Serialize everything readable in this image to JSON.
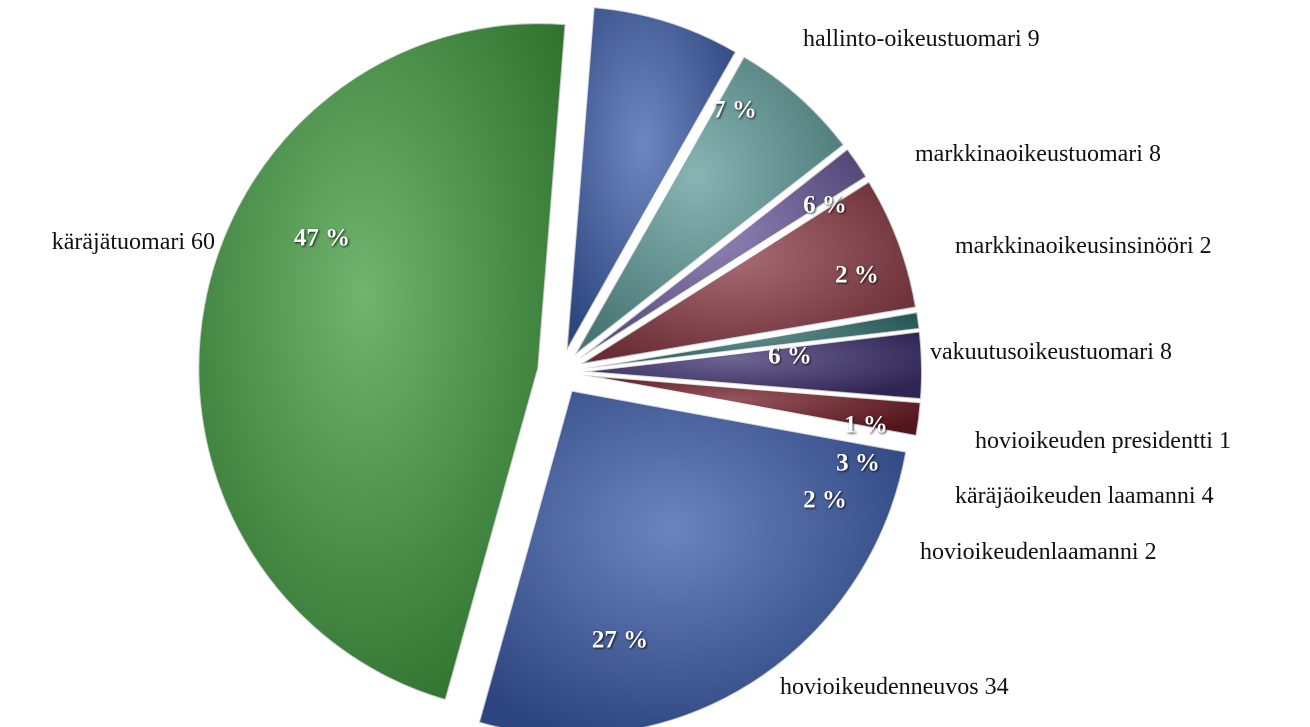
{
  "chart_data": {
    "type": "pie",
    "categories": [
      "hallinto-oikeustuomari",
      "markkinaoikeustuomari",
      "markkinaoikeusinsinööri",
      "vakuutusoikeustuomari",
      "hovioikeuden presidentti",
      "käräjäoikeuden laamanni",
      "hovioikeudenlaamanni",
      "hovioikeudenneuvos",
      "käräjätuomari"
    ],
    "values": [
      9,
      8,
      2,
      8,
      1,
      4,
      2,
      34,
      60
    ],
    "percent_labels": [
      "7 %",
      "6 %",
      "2 %",
      "6 %",
      "1 %",
      "3 %",
      "2 %",
      "27 %",
      "47 %"
    ],
    "colors": [
      "#3f5fab",
      "#5f9c99",
      "#6b5c9e",
      "#8c3b46",
      "#2f6e6c",
      "#3e3171",
      "#701b24",
      "#3b5ba9",
      "#409b3f"
    ]
  }
}
